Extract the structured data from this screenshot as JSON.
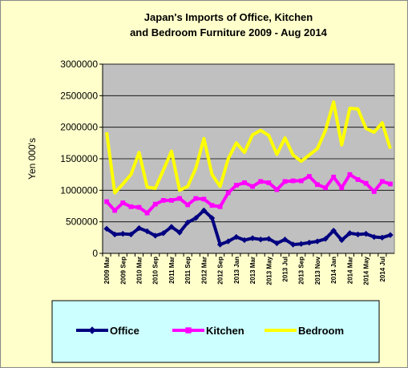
{
  "chart_data": {
    "type": "line",
    "title_lines": [
      "Japan's Imports of Office, Kitchen",
      "and Bedroom Furniture 2009 - Aug 2014"
    ],
    "y_label": "Yen 000's",
    "categories": [
      "2009 Mar",
      null,
      "2009 Sep",
      null,
      "2010 Mar",
      null,
      "2010 Sep",
      null,
      "2011 Mar",
      null,
      "2011 Sep",
      null,
      "2012 Mar",
      null,
      "2012 Sep",
      null,
      "2013 Jan",
      null,
      "2013 Mar",
      null,
      "2013 May",
      null,
      "2013 Jul",
      null,
      "2013 Sep",
      null,
      "2013 Nov",
      null,
      "2014 Jan",
      null,
      "2014 Mar",
      null,
      "2014 May",
      null,
      "2014 Jul",
      null
    ],
    "series": [
      {
        "name": "Office",
        "color": "#000080",
        "marker": "diamond",
        "values": [
          390,
          300,
          310,
          300,
          400,
          350,
          280,
          320,
          420,
          330,
          490,
          560,
          680,
          560,
          140,
          190,
          260,
          210,
          240,
          220,
          230,
          160,
          220,
          140,
          150,
          170,
          190,
          230,
          360,
          210,
          320,
          300,
          310,
          260,
          250,
          290
        ]
      },
      {
        "name": "Kitchen",
        "color": "#ff00ff",
        "marker": "square",
        "values": [
          820,
          680,
          800,
          740,
          730,
          640,
          780,
          840,
          840,
          870,
          770,
          870,
          860,
          760,
          740,
          960,
          1080,
          1120,
          1060,
          1140,
          1120,
          1010,
          1140,
          1150,
          1150,
          1220,
          1090,
          1040,
          1210,
          1040,
          1250,
          1170,
          1110,
          980,
          1140,
          1100
        ]
      },
      {
        "name": "Bedroom",
        "color": "#ffff00",
        "marker": "none",
        "values": [
          1920,
          960,
          1100,
          1250,
          1600,
          1050,
          1030,
          1320,
          1620,
          1000,
          1060,
          1350,
          1820,
          1250,
          1060,
          1500,
          1750,
          1600,
          1880,
          1950,
          1870,
          1570,
          1830,
          1560,
          1460,
          1560,
          1660,
          1950,
          2400,
          1720,
          2300,
          2290,
          1980,
          1920,
          2070,
          1660
        ]
      }
    ],
    "ylim": [
      0,
      3000000
    ],
    "yticks": [
      0,
      500000,
      1000000,
      1500000,
      2000000,
      2500000,
      3000000
    ],
    "value_scale": 1000,
    "grid": true
  }
}
